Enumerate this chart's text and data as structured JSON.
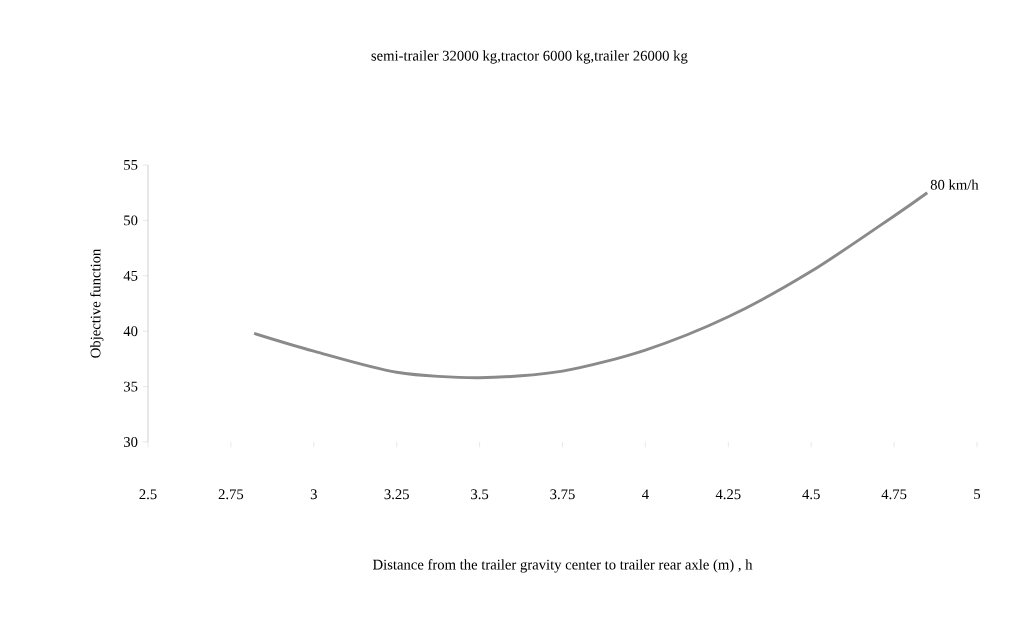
{
  "chart_data": {
    "type": "line",
    "title": "semi-trailer 32000 kg,tractor 6000 kg,trailer 26000 kg",
    "xlabel": "Distance from the trailer gravity center to trailer rear axle (m) , h",
    "ylabel": "Objective function",
    "x": [
      2.82,
      3.0,
      3.25,
      3.5,
      3.75,
      4.0,
      4.25,
      4.5,
      4.75,
      4.85
    ],
    "series": [
      {
        "name": "80 km/h",
        "color": "#8a8a8a",
        "values": [
          39.8,
          38.2,
          36.3,
          35.8,
          36.4,
          38.3,
          41.3,
          45.4,
          50.4,
          52.5
        ]
      }
    ],
    "xlim": [
      2.5,
      5
    ],
    "ylim": [
      30,
      55
    ],
    "xticks": [
      2.5,
      2.75,
      3,
      3.25,
      3.5,
      3.75,
      4,
      4.25,
      4.5,
      4.75,
      5
    ],
    "yticks": [
      30,
      35,
      40,
      45,
      50,
      55
    ],
    "grid": false,
    "marker": "none",
    "line_style": "solid"
  }
}
